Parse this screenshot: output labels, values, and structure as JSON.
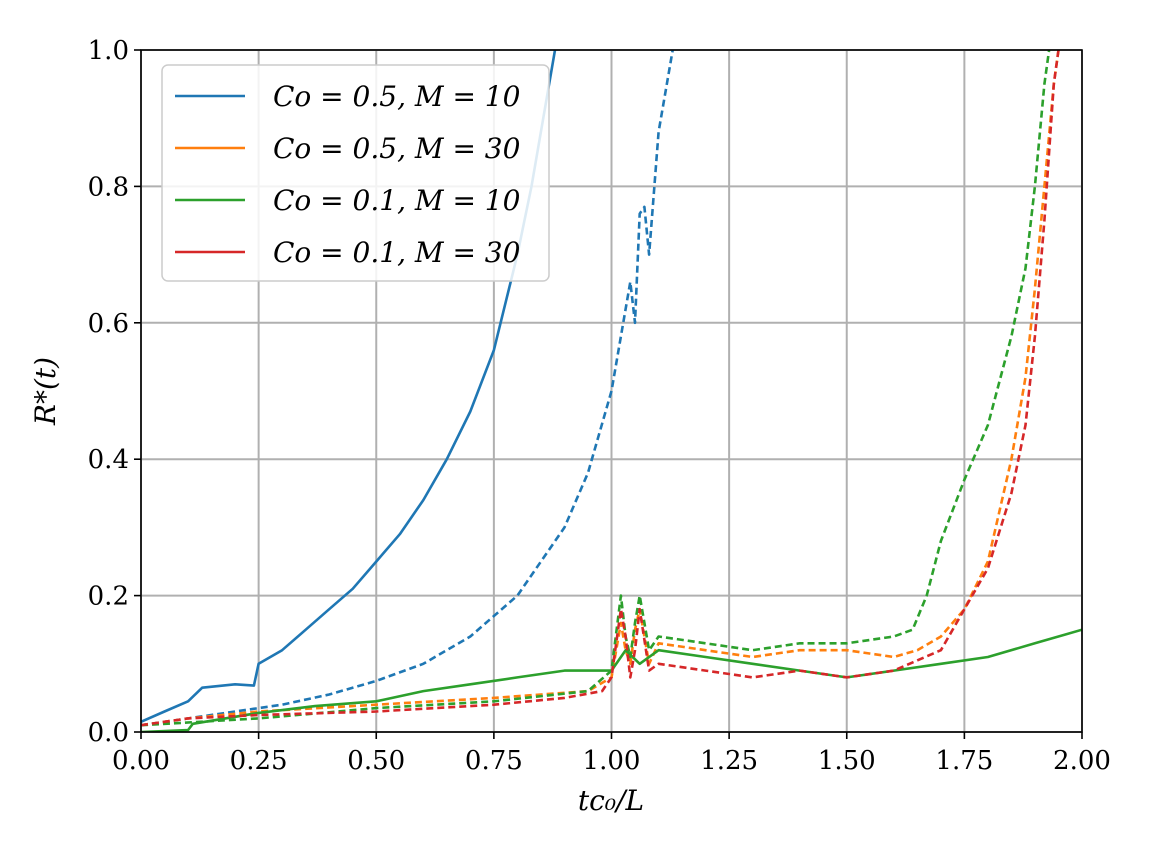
{
  "chart_data": {
    "type": "line",
    "xlabel": "tc₀/L",
    "ylabel": "R*(t)",
    "xlim": [
      0,
      2
    ],
    "ylim": [
      0,
      1
    ],
    "grid": true,
    "legend_position": "top-left",
    "x_ticks": [
      "0.00",
      "0.25",
      "0.50",
      "0.75",
      "1.00",
      "1.25",
      "1.50",
      "1.75",
      "2.00"
    ],
    "y_ticks": [
      "0.0",
      "0.2",
      "0.4",
      "0.6",
      "0.8",
      "1.0"
    ],
    "series": [
      {
        "name": "Co = 0.5, M = 10",
        "color": "#1f77b4",
        "style": "solid",
        "x": [
          0,
          0.05,
          0.1,
          0.13,
          0.2,
          0.24,
          0.25,
          0.3,
          0.35,
          0.4,
          0.45,
          0.5,
          0.55,
          0.6,
          0.65,
          0.7,
          0.75,
          0.8,
          0.83,
          0.86,
          0.88
        ],
        "y": [
          0.015,
          0.03,
          0.045,
          0.065,
          0.07,
          0.068,
          0.1,
          0.12,
          0.15,
          0.18,
          0.21,
          0.25,
          0.29,
          0.34,
          0.4,
          0.47,
          0.56,
          0.7,
          0.8,
          0.92,
          1.0
        ]
      },
      {
        "name": "",
        "color": "#1f77b4",
        "style": "dashed",
        "x": [
          0,
          0.1,
          0.2,
          0.3,
          0.4,
          0.5,
          0.6,
          0.7,
          0.8,
          0.9,
          0.95,
          1.0,
          1.02,
          1.04,
          1.05,
          1.06,
          1.07,
          1.08,
          1.1,
          1.12,
          1.13
        ],
        "y": [
          0.01,
          0.02,
          0.03,
          0.04,
          0.055,
          0.075,
          0.1,
          0.14,
          0.2,
          0.3,
          0.38,
          0.5,
          0.58,
          0.66,
          0.6,
          0.76,
          0.77,
          0.7,
          0.88,
          0.96,
          1.0
        ]
      },
      {
        "name": "Co = 0.5, M = 30",
        "color": "#ff7f0e",
        "style": "dashed",
        "x": [
          0,
          0.1,
          0.25,
          0.5,
          0.75,
          0.95,
          1.0,
          1.02,
          1.03,
          1.04,
          1.05,
          1.06,
          1.08,
          1.1,
          1.2,
          1.3,
          1.4,
          1.5,
          1.6,
          1.65,
          1.7,
          1.75,
          1.8,
          1.85,
          1.88,
          1.9,
          1.92,
          1.94,
          1.95
        ],
        "y": [
          0.01,
          0.02,
          0.03,
          0.04,
          0.05,
          0.06,
          0.08,
          0.16,
          0.12,
          0.1,
          0.15,
          0.18,
          0.1,
          0.13,
          0.12,
          0.11,
          0.12,
          0.12,
          0.11,
          0.12,
          0.14,
          0.18,
          0.25,
          0.4,
          0.52,
          0.65,
          0.8,
          0.95,
          1.0
        ]
      },
      {
        "name": "Co = 0.1, M = 10",
        "color": "#2ca02c",
        "style": "solid",
        "x": [
          0,
          0.1,
          0.11,
          0.25,
          0.37,
          0.5,
          0.6,
          0.7,
          0.8,
          0.9,
          1.0,
          1.03,
          1.06,
          1.1,
          1.2,
          1.3,
          1.4,
          1.5,
          1.6,
          1.7,
          1.8,
          1.9,
          2.0
        ],
        "y": [
          0,
          0.003,
          0.012,
          0.028,
          0.038,
          0.045,
          0.06,
          0.07,
          0.08,
          0.09,
          0.09,
          0.12,
          0.1,
          0.12,
          0.11,
          0.1,
          0.09,
          0.08,
          0.09,
          0.1,
          0.11,
          0.13,
          0.15
        ]
      },
      {
        "name": "",
        "color": "#2ca02c",
        "style": "dashed",
        "x": [
          0,
          0.25,
          0.5,
          0.75,
          0.95,
          1.0,
          1.02,
          1.03,
          1.04,
          1.05,
          1.06,
          1.08,
          1.1,
          1.2,
          1.3,
          1.4,
          1.5,
          1.6,
          1.64,
          1.67,
          1.7,
          1.75,
          1.8,
          1.85,
          1.88,
          1.9,
          1.92,
          1.93
        ],
        "y": [
          0.01,
          0.02,
          0.035,
          0.045,
          0.06,
          0.09,
          0.2,
          0.14,
          0.11,
          0.16,
          0.2,
          0.12,
          0.14,
          0.13,
          0.12,
          0.13,
          0.13,
          0.14,
          0.15,
          0.2,
          0.28,
          0.37,
          0.45,
          0.58,
          0.68,
          0.8,
          0.95,
          1.0
        ]
      },
      {
        "name": "Co = 0.1, M = 30",
        "color": "#d62728",
        "style": "dashed",
        "x": [
          0,
          0.1,
          0.25,
          0.5,
          0.75,
          0.9,
          0.98,
          1.0,
          1.02,
          1.03,
          1.04,
          1.05,
          1.06,
          1.08,
          1.1,
          1.2,
          1.3,
          1.4,
          1.5,
          1.6,
          1.7,
          1.75,
          1.8,
          1.85,
          1.88,
          1.9,
          1.92,
          1.94,
          1.95
        ],
        "y": [
          0.01,
          0.02,
          0.025,
          0.03,
          0.04,
          0.05,
          0.06,
          0.08,
          0.18,
          0.14,
          0.08,
          0.12,
          0.18,
          0.09,
          0.1,
          0.09,
          0.08,
          0.09,
          0.08,
          0.09,
          0.12,
          0.18,
          0.24,
          0.35,
          0.45,
          0.58,
          0.75,
          0.95,
          1.0
        ]
      }
    ]
  }
}
